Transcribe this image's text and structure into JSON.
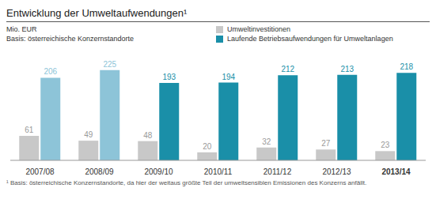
{
  "chart_data": {
    "type": "bar",
    "title": "Entwicklung der Umweltaufwendungen¹",
    "subtitle": "Mio. EUR",
    "annotations": [
      "Basis: österreichische Konzernstandorte",
      "¹ Basis: österreichische Konzernstandorte, da hier der weitaus größte Teil der umweltsensiblen Emissionen des Konzerns anfällt."
    ],
    "categories": [
      "2007/08",
      "2008/09",
      "2009/10",
      "2010/11",
      "2011/12",
      "2012/13",
      "2013/14"
    ],
    "series": [
      {
        "name": "Umweltinvestitionen",
        "color": "#c8c8c8",
        "values": [
          61,
          49,
          48,
          20,
          32,
          27,
          23
        ]
      },
      {
        "name": "Laufende Betriebsaufwendungen für Umweltanlagen",
        "color": "#1a8fa8",
        "colors": [
          "#8dc4d8",
          "#8dc4d8",
          "#1a8fa8",
          "#1a8fa8",
          "#1a8fa8",
          "#1a8fa8",
          "#1a8fa8"
        ],
        "values": [
          206,
          225,
          193,
          194,
          212,
          213,
          218
        ]
      }
    ],
    "ylim": [
      0,
      260
    ],
    "grid": false,
    "data_labels": true,
    "tick_labels": "x"
  }
}
